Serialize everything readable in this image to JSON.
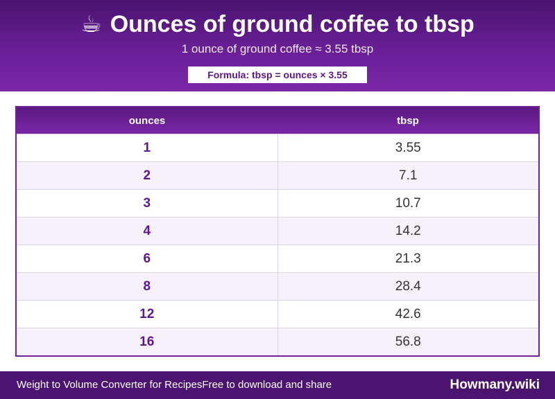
{
  "header": {
    "icon": "coffee-cup-icon",
    "icon_glyph": "☕",
    "title": "Ounces of ground coffee to tbsp",
    "subtitle": "1 ounce of ground coffee ≈ 3.55 tbsp",
    "formula": "Formula: tbsp = ounces × 3.55"
  },
  "table": {
    "columns": [
      "ounces",
      "tbsp"
    ],
    "rows": [
      [
        "1",
        "3.55"
      ],
      [
        "2",
        "7.1"
      ],
      [
        "3",
        "10.7"
      ],
      [
        "4",
        "14.2"
      ],
      [
        "6",
        "21.3"
      ],
      [
        "8",
        "28.4"
      ],
      [
        "12",
        "42.6"
      ],
      [
        "16",
        "56.8"
      ]
    ]
  },
  "footer": {
    "left_text": "Weight to Volume Converter for Recipes",
    "left_text_2": "Free to download and share",
    "brand": "Howmany.wiki"
  },
  "colors": {
    "header_purple": "#6a1f96",
    "footer_purple": "#4a1470",
    "row_alt": "#f5f0fa",
    "accent_text": "#5d1690"
  }
}
